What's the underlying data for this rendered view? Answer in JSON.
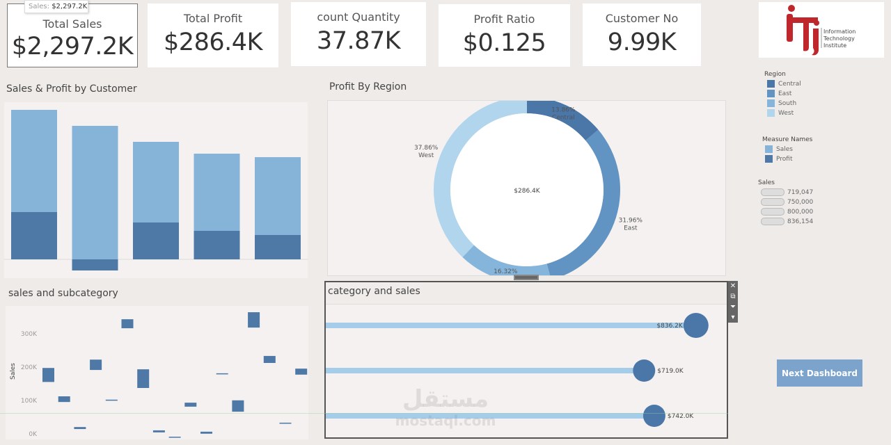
{
  "kpis": [
    {
      "title": "Total Sales",
      "value": "$2,297.2K"
    },
    {
      "title": "Total Profit",
      "value": "$286.4K"
    },
    {
      "title": "count Quantity",
      "value": "37.87K"
    },
    {
      "title": "Profit Ratio",
      "value": "$0.125"
    },
    {
      "title": "Customer No",
      "value": "9.99K"
    }
  ],
  "tooltip": {
    "label": "Sales:",
    "value": "$2,297.2K"
  },
  "logo": {
    "text": [
      "Information",
      "Technology",
      "Institute"
    ],
    "mark": "iTi",
    "color": "#c0272d"
  },
  "colors": {
    "background": "#eeebe8",
    "sales": "#86b4d9",
    "profit": "#4e79a7",
    "central": "#4a76a8",
    "east": "#6194c3",
    "south": "#85b5da",
    "west": "#b0d5ec",
    "lollipop_bar": "#a5cdea",
    "button": "#7ba3cc"
  },
  "customer_chart": {
    "title": "Sales & Profit by Customer"
  },
  "region_chart": {
    "title": "Profit By Region"
  },
  "subcategory_chart": {
    "title": "sales and subcategory"
  },
  "category_chart": {
    "title": "category and sales"
  },
  "legends": {
    "region": {
      "title": "Region",
      "items": [
        "Central",
        "East",
        "South",
        "West"
      ]
    },
    "measure": {
      "title": "Measure Names",
      "items": [
        "Sales",
        "Profit"
      ]
    },
    "sales": {
      "title": "Sales",
      "items": [
        "719,047",
        "750,000",
        "800,000",
        "836,154"
      ]
    }
  },
  "next_button": "Next Dashboard",
  "toolbar": {
    "icons": [
      "close-icon",
      "popout-icon",
      "filter-icon",
      "dropdown-icon"
    ]
  },
  "watermark": {
    "arabic": "مستقل",
    "latin": "mostaql.com"
  },
  "chart_data": [
    {
      "type": "bar",
      "name": "Sales & Profit by Customer",
      "note_scale": "unlabeled",
      "categories": [
        "1",
        "2",
        "3",
        "4",
        "5"
      ],
      "series": [
        {
          "name": "Sales",
          "values": [
            215,
            192,
            169,
            152,
            147
          ]
        },
        {
          "name": "Profit",
          "values": [
            68,
            -16,
            53,
            41,
            35
          ]
        }
      ]
    },
    {
      "type": "pie",
      "donut": true,
      "center_label": "$286.4K",
      "slices": [
        {
          "label": "Central",
          "percent": 13.86
        },
        {
          "label": "East",
          "percent": 31.96
        },
        {
          "label": "South",
          "percent": 16.32
        },
        {
          "label": "West",
          "percent": 37.86
        }
      ]
    },
    {
      "type": "bar",
      "subtype": "gantt",
      "ylabel": "Sales",
      "yticks": [
        "0K",
        "100K",
        "200K",
        "300K"
      ],
      "ylim": [
        0,
        390000
      ],
      "ranges": [
        [
          168000,
          210000
        ],
        [
          108000,
          125000
        ],
        [
          27000,
          33000
        ],
        [
          204000,
          235000
        ],
        [
          113000,
          115000
        ],
        [
          329000,
          356000
        ],
        [
          150000,
          206000
        ],
        [
          17000,
          23000
        ],
        [
          2000,
          4000
        ],
        [
          94000,
          106000
        ],
        [
          13000,
          19000
        ],
        [
          192000,
          194000
        ],
        [
          79000,
          113000
        ],
        [
          331000,
          377000
        ],
        [
          225000,
          246000
        ],
        [
          44000,
          46000
        ],
        [
          190000,
          208000
        ]
      ]
    },
    {
      "type": "bar",
      "subtype": "lollipop",
      "values": [
        836.2,
        719.0,
        742.0
      ],
      "labels": [
        "$836.2K",
        "$719.0K",
        "$742.0K"
      ]
    }
  ]
}
